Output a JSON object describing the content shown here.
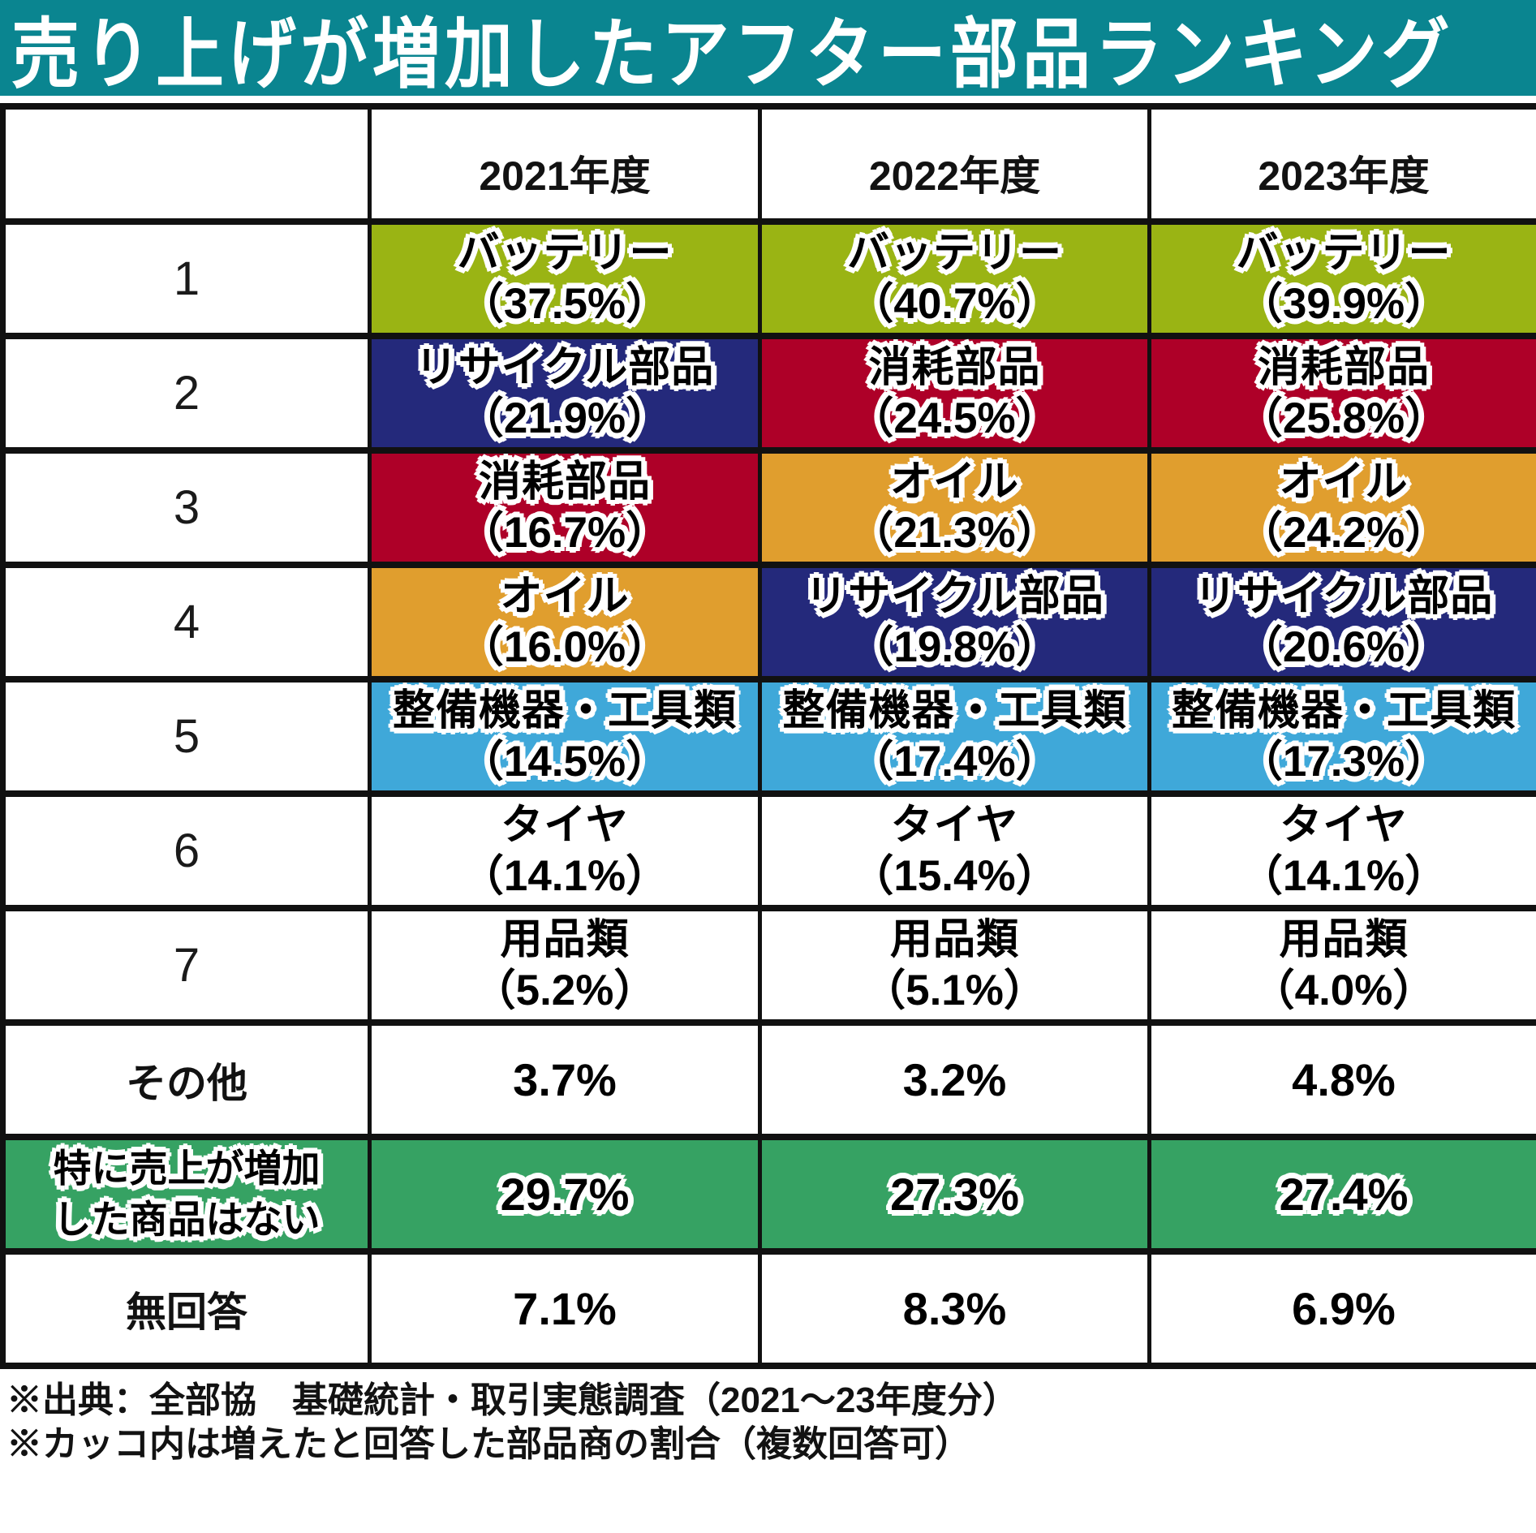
{
  "title": "売り上げが増加したアフター部品ランキング",
  "colors": {
    "teal": "#0a8590",
    "lime": "#9ab414",
    "navy": "#24297b",
    "red": "#ae0028",
    "orange": "#e09e2e",
    "sky": "#3fa8d9",
    "green": "#36a263",
    "border": "#111111"
  },
  "chart_data": {
    "type": "table",
    "title": "売り上げが増加したアフター部品ランキング",
    "columns": [
      "2021年度",
      "2022年度",
      "2023年度"
    ],
    "rows": [
      {
        "rank": "1",
        "cells": [
          {
            "item": "バッテリー",
            "pct": 37.5,
            "display": "（37.5%）",
            "color": "lime"
          },
          {
            "item": "バッテリー",
            "pct": 40.7,
            "display": "（40.7%）",
            "color": "lime"
          },
          {
            "item": "バッテリー",
            "pct": 39.9,
            "display": "（39.9%）",
            "color": "lime"
          }
        ]
      },
      {
        "rank": "2",
        "cells": [
          {
            "item": "リサイクル部品",
            "pct": 21.9,
            "display": "（21.9%）",
            "color": "navy"
          },
          {
            "item": "消耗部品",
            "pct": 24.5,
            "display": "（24.5%）",
            "color": "red"
          },
          {
            "item": "消耗部品",
            "pct": 25.8,
            "display": "（25.8%）",
            "color": "red"
          }
        ]
      },
      {
        "rank": "3",
        "cells": [
          {
            "item": "消耗部品",
            "pct": 16.7,
            "display": "（16.7%）",
            "color": "red"
          },
          {
            "item": "オイル",
            "pct": 21.3,
            "display": "（21.3%）",
            "color": "orange"
          },
          {
            "item": "オイル",
            "pct": 24.2,
            "display": "（24.2%）",
            "color": "orange"
          }
        ]
      },
      {
        "rank": "4",
        "cells": [
          {
            "item": "オイル",
            "pct": 16.0,
            "display": "（16.0%）",
            "color": "orange"
          },
          {
            "item": "リサイクル部品",
            "pct": 19.8,
            "display": "（19.8%）",
            "color": "navy"
          },
          {
            "item": "リサイクル部品",
            "pct": 20.6,
            "display": "（20.6%）",
            "color": "navy"
          }
        ]
      },
      {
        "rank": "5",
        "cells": [
          {
            "item": "整備機器・工具類",
            "pct": 14.5,
            "display": "（14.5%）",
            "color": "sky"
          },
          {
            "item": "整備機器・工具類",
            "pct": 17.4,
            "display": "（17.4%）",
            "color": "sky"
          },
          {
            "item": "整備機器・工具類",
            "pct": 17.3,
            "display": "（17.3%）",
            "color": "sky"
          }
        ]
      },
      {
        "rank": "6",
        "cells": [
          {
            "item": "タイヤ",
            "pct": 14.1,
            "display": "（14.1%）",
            "color": "white"
          },
          {
            "item": "タイヤ",
            "pct": 15.4,
            "display": "（15.4%）",
            "color": "white"
          },
          {
            "item": "タイヤ",
            "pct": 14.1,
            "display": "（14.1%）",
            "color": "white"
          }
        ]
      },
      {
        "rank": "7",
        "cells": [
          {
            "item": "用品類",
            "pct": 5.2,
            "display": "（5.2%）",
            "color": "white"
          },
          {
            "item": "用品類",
            "pct": 5.1,
            "display": "（5.1%）",
            "color": "white"
          },
          {
            "item": "用品類",
            "pct": 4.0,
            "display": "（4.0%）",
            "color": "white"
          }
        ]
      }
    ],
    "extra_rows": [
      {
        "label": "その他",
        "values": [
          "3.7%",
          "3.2%",
          "4.8%"
        ],
        "pcts": [
          3.7,
          3.2,
          4.8
        ]
      },
      {
        "label": "特に売上が増加した商品はない",
        "label_line1": "特に売上が増加",
        "label_line2": "した商品はない",
        "values": [
          "29.7%",
          "27.3%",
          "27.4%"
        ],
        "pcts": [
          29.7,
          27.3,
          27.4
        ]
      },
      {
        "label": "無回答",
        "values": [
          "7.1%",
          "8.3%",
          "6.9%"
        ],
        "pcts": [
          7.1,
          8.3,
          6.9
        ]
      }
    ],
    "footnotes": [
      "※出典：全部協　基礎統計・取引実態調査（2021～23年度分）",
      "※カッコ内は増えたと回答した部品商の割合（複数回答可）"
    ]
  }
}
